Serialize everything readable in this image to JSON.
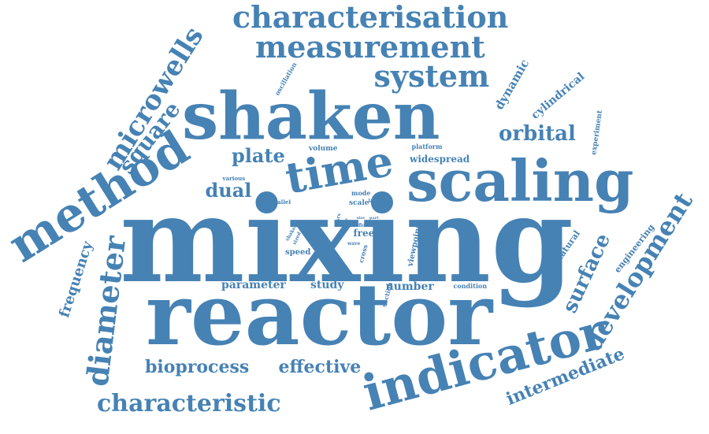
{
  "word_color": "#4682b4",
  "words": [
    {
      "text": "mixing",
      "weight": 100
    },
    {
      "text": "reactor",
      "weight": 90
    },
    {
      "text": "shaken",
      "weight": 70
    },
    {
      "text": "scaling",
      "weight": 62
    },
    {
      "text": "indicator",
      "weight": 62
    },
    {
      "text": "method",
      "weight": 55
    },
    {
      "text": "time",
      "weight": 48
    },
    {
      "text": "characterisation",
      "weight": 42
    },
    {
      "text": "measurement",
      "weight": 40
    },
    {
      "text": "system",
      "weight": 40
    },
    {
      "text": "diameter",
      "weight": 40
    },
    {
      "text": "development",
      "weight": 36
    },
    {
      "text": "microwells",
      "weight": 35
    },
    {
      "text": "characteristic",
      "weight": 32
    },
    {
      "text": "square",
      "weight": 30
    },
    {
      "text": "orbital",
      "weight": 30
    },
    {
      "text": "surface",
      "weight": 28
    },
    {
      "text": "dual",
      "weight": 26
    },
    {
      "text": "plate",
      "weight": 26
    },
    {
      "text": "intermediate",
      "weight": 25
    },
    {
      "text": "bioprocess",
      "weight": 24
    },
    {
      "text": "effective",
      "weight": 24
    },
    {
      "text": "frequency",
      "weight": 22
    },
    {
      "text": "dynamic",
      "weight": 18
    },
    {
      "text": "parameter",
      "weight": 16
    },
    {
      "text": "study",
      "weight": 16
    },
    {
      "text": "number",
      "weight": 16
    },
    {
      "text": "cylindrical",
      "weight": 14
    },
    {
      "text": "widespread",
      "weight": 13
    },
    {
      "text": "engineering",
      "weight": 12
    },
    {
      "text": "natural",
      "weight": 12
    },
    {
      "text": "free",
      "weight": 12
    },
    {
      "text": "viewpoint",
      "weight": 11
    },
    {
      "text": "experiment",
      "weight": 10
    },
    {
      "text": "speed",
      "weight": 10
    },
    {
      "text": "oscillation",
      "weight": 9
    },
    {
      "text": "volume",
      "weight": 9
    },
    {
      "text": "platform",
      "weight": 9
    },
    {
      "text": "scale",
      "weight": 9
    },
    {
      "text": "mode",
      "weight": 9
    },
    {
      "text": "condition",
      "weight": 9
    },
    {
      "text": "section",
      "weight": 9
    },
    {
      "text": "cross",
      "weight": 9
    },
    {
      "text": "various",
      "weight": 8
    },
    {
      "text": "parallel",
      "weight": 8
    },
    {
      "text": "larger",
      "weight": 8
    },
    {
      "text": "flow",
      "weight": 7
    },
    {
      "text": "sized",
      "weight": 7
    },
    {
      "text": "wave",
      "weight": 7
    },
    {
      "text": "shaker",
      "weight": 7
    },
    {
      "text": "osrs",
      "weight": 6
    },
    {
      "text": "size",
      "weight": 6
    },
    {
      "text": "part",
      "weight": 6
    },
    {
      "text": "co",
      "weight": 6
    }
  ]
}
